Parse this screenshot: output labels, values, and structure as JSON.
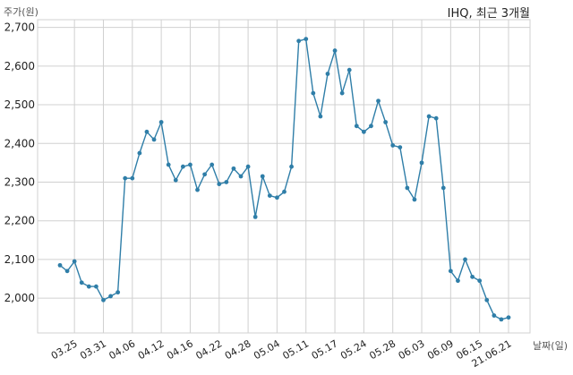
{
  "chart_data": {
    "type": "line",
    "title": "IHQ, 최근 3개월",
    "xlabel": "날짜(일)",
    "ylabel": "주가(원)",
    "ylim": [
      1910,
      2720
    ],
    "yticks": [
      "2,000",
      "2,100",
      "2,200",
      "2,300",
      "2,400",
      "2,500",
      "2,600",
      "2,700"
    ],
    "ytick_values": [
      2000,
      2100,
      2200,
      2300,
      2400,
      2500,
      2600,
      2700
    ],
    "xtick_labels": [
      "03.25",
      "03.31",
      "04.06",
      "04.12",
      "04.16",
      "04.22",
      "04.28",
      "05.04",
      "05.11",
      "05.17",
      "05.24",
      "05.28",
      "06.03",
      "06.09",
      "06.15",
      "21.06.21"
    ],
    "xtick_index": [
      2,
      6,
      10,
      14,
      18,
      22,
      26,
      30,
      34,
      38,
      42,
      46,
      50,
      54,
      58,
      62
    ],
    "grid": true,
    "line_color": "#2f7ea8",
    "series": [
      {
        "values": [
          2085,
          2070,
          2095,
          2040,
          2030,
          2030,
          1995,
          2005,
          2015,
          2310,
          2310,
          2375,
          2430,
          2410,
          2455,
          2345,
          2305,
          2340,
          2345,
          2280,
          2320,
          2345,
          2295,
          2300,
          2335,
          2315,
          2340,
          2210,
          2315,
          2265,
          2260,
          2275,
          2340,
          2665,
          2670,
          2530,
          2470,
          2580,
          2640,
          2530,
          2590,
          2445,
          2430,
          2445,
          2510,
          2455,
          2395,
          2390,
          2285,
          2255,
          2350,
          2470,
          2465,
          2285,
          2070,
          2045,
          2100,
          2055,
          2045,
          1995,
          1955,
          1945,
          1950
        ]
      }
    ]
  }
}
